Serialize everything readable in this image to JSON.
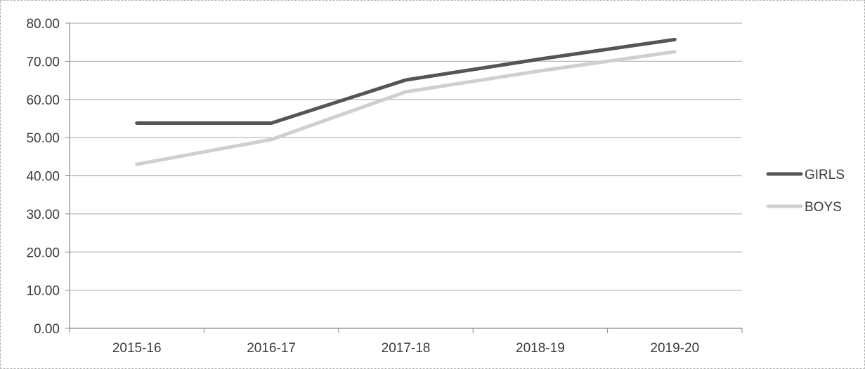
{
  "chart_data": {
    "type": "line",
    "title": "",
    "xlabel": "",
    "ylabel": "",
    "categories": [
      "2015-16",
      "2016-17",
      "2017-18",
      "2018-19",
      "2019-20"
    ],
    "ylim": [
      0,
      80
    ],
    "yticks": [
      "0.00",
      "10.00",
      "20.00",
      "30.00",
      "40.00",
      "50.00",
      "60.00",
      "70.00",
      "80.00"
    ],
    "grid": true,
    "legend_position": "right",
    "series": [
      {
        "name": "GIRLS",
        "values": [
          53.8,
          53.8,
          65.1,
          70.6,
          75.7
        ],
        "color": "#555555"
      },
      {
        "name": "BOYS",
        "values": [
          43.0,
          49.5,
          62.0,
          67.5,
          72.5
        ],
        "color": "#cfcfcf"
      }
    ]
  }
}
